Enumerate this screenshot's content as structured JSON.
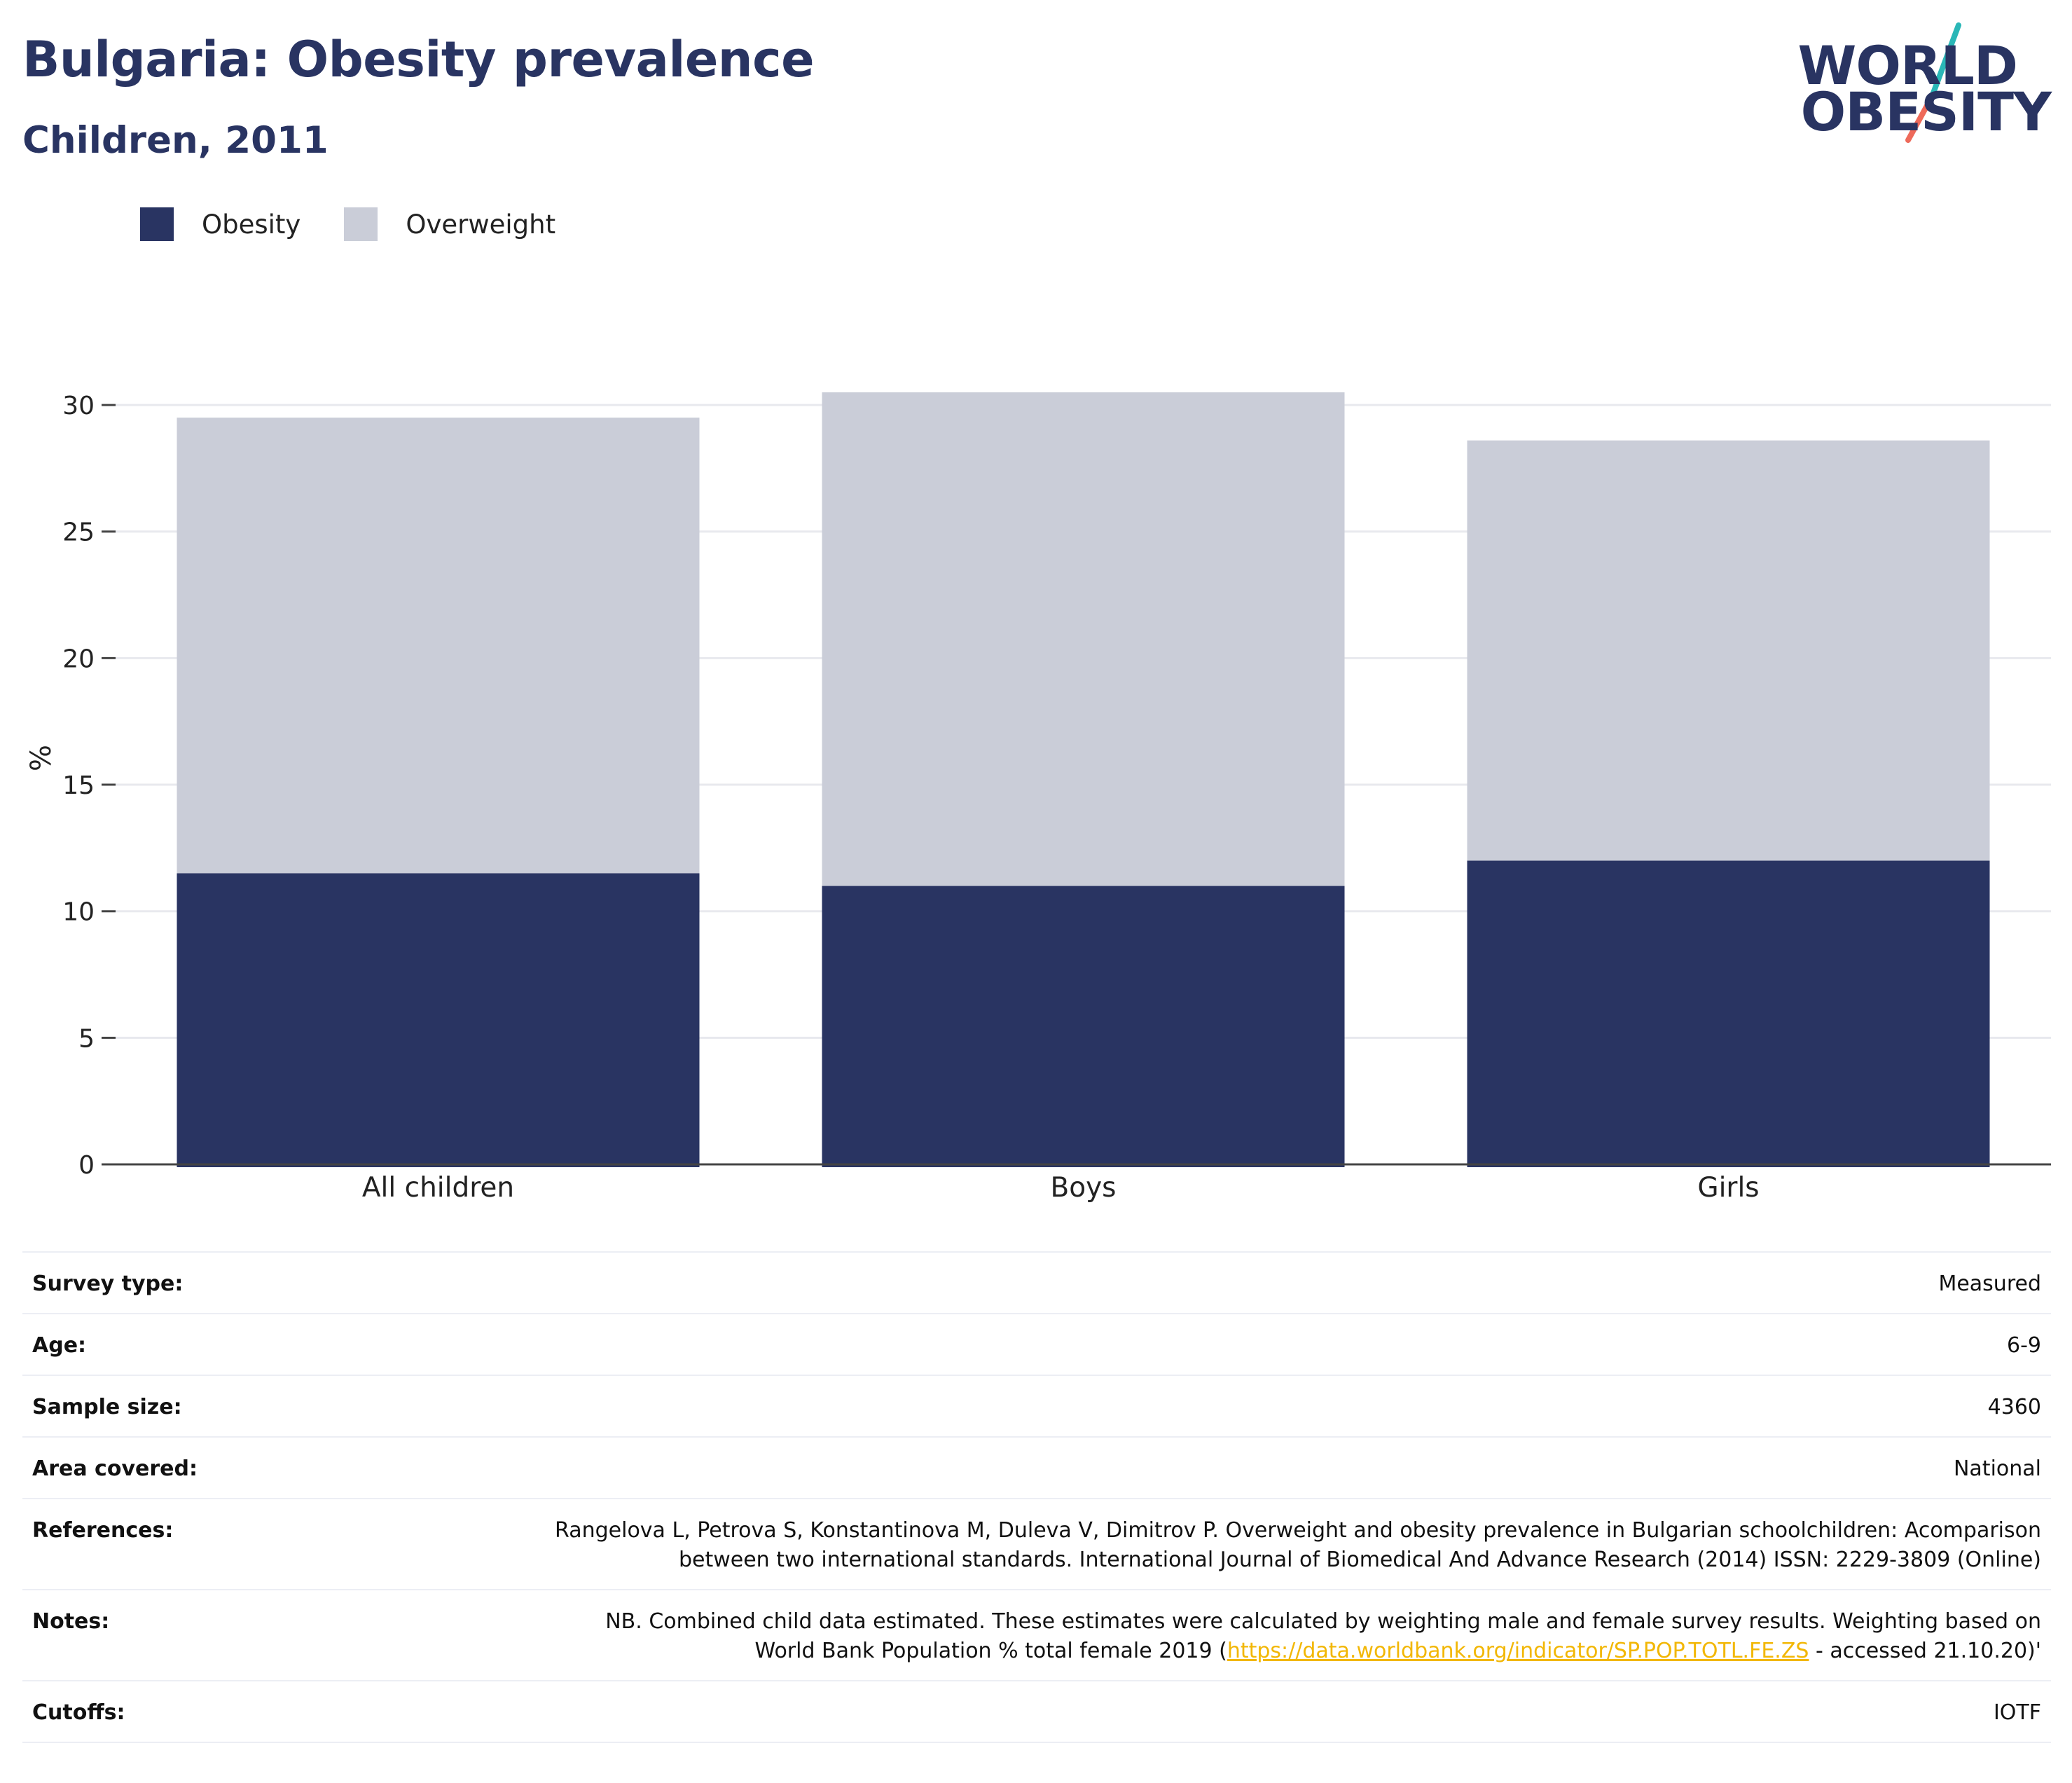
{
  "header": {
    "title": "Bulgaria: Obesity prevalence",
    "subtitle": "Children, 2011"
  },
  "logo": {
    "line1": "WORLD",
    "line2": "OBESITY"
  },
  "legend": {
    "obesity": "Obesity",
    "overweight": "Overweight"
  },
  "colors": {
    "obesity": "#293462",
    "overweight": "#cacdd8",
    "logo_teal": "#2ab7b7",
    "logo_coral": "#ee6a5a",
    "link": "#f2b705"
  },
  "chart_data": {
    "type": "bar",
    "stacked": true,
    "categories": [
      "All children",
      "Boys",
      "Girls"
    ],
    "series": [
      {
        "name": "Obesity",
        "values": [
          11.5,
          11.0,
          12.0
        ]
      },
      {
        "name": "Overweight",
        "values": [
          18.0,
          19.5,
          16.6
        ]
      }
    ],
    "totals": [
      29.5,
      30.5,
      28.6
    ],
    "ylabel": "%",
    "ylim": [
      0,
      30.5
    ],
    "yticks": [
      0,
      5,
      10,
      15,
      20,
      25,
      30
    ],
    "grid": true,
    "legend_position": "top-left"
  },
  "meta": {
    "survey_type": {
      "label": "Survey type:",
      "value": "Measured"
    },
    "age": {
      "label": "Age:",
      "value": "6-9"
    },
    "sample_size": {
      "label": "Sample size:",
      "value": "4360"
    },
    "area": {
      "label": "Area covered:",
      "value": "National"
    },
    "references": {
      "label": "References:",
      "value": "Rangelova L, Petrova S, Konstantinova M, Duleva V, Dimitrov P. Overweight and obesity prevalence in Bulgarian schoolchildren: Acomparison between two international standards. International Journal of Biomedical And Advance Research (2014) ISSN: 2229-3809 (Online)"
    },
    "notes": {
      "label": "Notes:",
      "before": "NB. Combined child data estimated. These estimates were calculated by weighting male and female survey results. Weighting based on World Bank Population % total female 2019 (",
      "link": "https://data.worldbank.org/indicator/SP.POP.TOTL.FE.ZS",
      "after": " - accessed 21.10.20)'"
    },
    "cutoffs": {
      "label": "Cutoffs:",
      "value": "IOTF"
    }
  }
}
